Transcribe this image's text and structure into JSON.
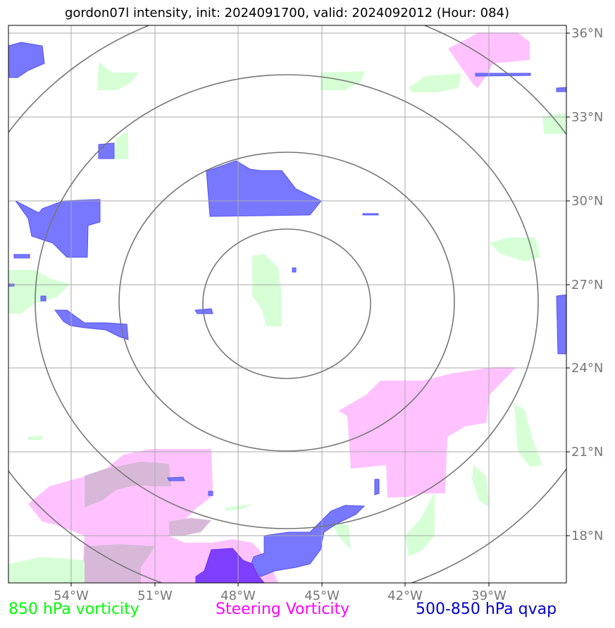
{
  "title": "gordon07l intensity, init: 2024091700, valid: 2024092012 (Hour: 084)",
  "axes": {
    "lon_labels": [
      "54°W",
      "51°W",
      "48°W",
      "45°W",
      "42°W",
      "39°W"
    ],
    "lat_labels": [
      "36°N",
      "33°N",
      "30°N",
      "27°N",
      "24°N",
      "21°N",
      "18°N"
    ]
  },
  "legend": [
    {
      "label": "850 hPa vorticity",
      "color": "#00ff00"
    },
    {
      "label": "Steering Vorticity",
      "color": "#ff00ff"
    },
    {
      "label": "500-850 hPa qvap",
      "color": "#0000cc"
    }
  ],
  "colors": {
    "vorticity_850": "#ccffcc",
    "steering_vorticity": "#ffb3ff",
    "qvap": "#6666ff",
    "range_ring": "#777777",
    "grid": "#aaaaaa",
    "tick_label": "#777777"
  }
}
